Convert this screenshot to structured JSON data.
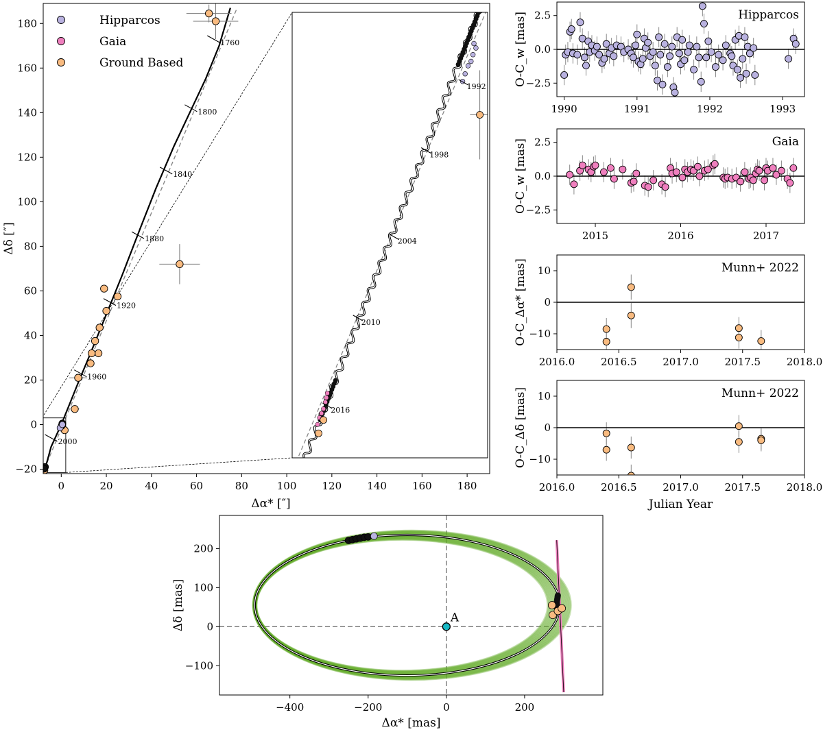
{
  "colors": {
    "hipparcos": "#b9b2e0",
    "gaia": "#ef7fbe",
    "ground": "#f9bb80",
    "orbit_ensemble": "#5fa821",
    "primary": "#17b8c4"
  },
  "chart_data": [
    {
      "id": "main",
      "type": "scatter",
      "xlabel": "Δα* [″]",
      "ylabel": "Δδ [″]",
      "xlim": [
        -8,
        190
      ],
      "ylim": [
        -22,
        189
      ],
      "xticks": [
        0,
        20,
        40,
        60,
        80,
        100,
        120,
        140,
        160,
        180
      ],
      "yticks": [
        -20,
        0,
        20,
        40,
        60,
        80,
        100,
        120,
        140,
        160,
        180
      ],
      "legend": {
        "position": "top-left",
        "entries": [
          {
            "key": "hipparcos",
            "label": "Hipparcos"
          },
          {
            "key": "gaia",
            "label": "Gaia"
          },
          {
            "key": "ground",
            "label": "Ground Based"
          }
        ]
      },
      "track": [
        [
          -7.2,
          -20
        ],
        [
          -4.5,
          -10
        ],
        [
          0,
          0
        ],
        [
          4,
          10
        ],
        [
          8,
          20
        ],
        [
          13,
          32
        ],
        [
          19,
          47
        ],
        [
          27,
          67
        ],
        [
          35,
          88
        ],
        [
          42,
          106
        ],
        [
          50,
          125
        ],
        [
          57,
          140
        ],
        [
          64,
          155
        ],
        [
          70,
          170
        ],
        [
          75,
          187
        ]
      ],
      "dashed": [
        [
          -7.5,
          -20
        ],
        [
          78,
          187
        ]
      ],
      "epochs": [
        {
          "label": "2000",
          "x": -4.5,
          "y": -6
        },
        {
          "label": "1960",
          "x": 8.5,
          "y": 23
        },
        {
          "label": "1920",
          "x": 21.5,
          "y": 55
        },
        {
          "label": "1880",
          "x": 34.0,
          "y": 85
        },
        {
          "label": "1840",
          "x": 46.5,
          "y": 114
        },
        {
          "label": "1800",
          "x": 57.5,
          "y": 142
        },
        {
          "label": "1760",
          "x": 67.5,
          "y": 173
        }
      ],
      "ground_points": [
        {
          "x": 65.5,
          "y": 184.5,
          "ex": 10,
          "ey": 4
        },
        {
          "x": 68.5,
          "y": 181,
          "ex": 10,
          "ey": 8
        },
        {
          "x": 52.5,
          "y": 72,
          "ex": 9,
          "ey": 9
        },
        {
          "x": 25,
          "y": 57.5,
          "ex": 1,
          "ey": 1.5
        },
        {
          "x": 19,
          "y": 61,
          "ex": 1,
          "ey": 1.5
        },
        {
          "x": 20,
          "y": 51,
          "ex": 1,
          "ey": 1.5
        },
        {
          "x": 17,
          "y": 43.5,
          "ex": 1,
          "ey": 1.5
        },
        {
          "x": 15,
          "y": 37.5,
          "ex": 1,
          "ey": 1.5
        },
        {
          "x": 16.5,
          "y": 32,
          "ex": 1.5,
          "ey": 1.5
        },
        {
          "x": 13.5,
          "y": 32,
          "ex": 1.5,
          "ey": 1.5
        },
        {
          "x": 13,
          "y": 27.5,
          "ex": 1.5,
          "ey": 1.5
        },
        {
          "x": 7.5,
          "y": 21,
          "ex": 4,
          "ey": 1.5
        },
        {
          "x": 6,
          "y": 7,
          "ex": 2,
          "ey": 1.5
        },
        {
          "x": 1.5,
          "y": -2.5,
          "ex": 1,
          "ey": 1
        },
        {
          "x": -7.5,
          "y": -20.5,
          "ex": 0.5,
          "ey": 0.5
        }
      ],
      "hip_points": [
        {
          "x": -0.5,
          "y": -1.5
        },
        {
          "x": 0.5,
          "y": 0
        }
      ],
      "black_points": [
        {
          "x": 0.5,
          "y": 0.5
        },
        {
          "x": 0.2,
          "y": -0.5
        },
        {
          "x": -7.2,
          "y": -19
        },
        {
          "x": -7.6,
          "y": -19.8
        }
      ]
    },
    {
      "id": "inset",
      "type": "line",
      "epochs": [
        {
          "label": "1992",
          "u": 0.876,
          "v": 0.843
        },
        {
          "label": "1998",
          "u": 0.685,
          "v": 0.69
        },
        {
          "label": "2004",
          "u": 0.522,
          "v": 0.496
        },
        {
          "label": "2010",
          "u": 0.336,
          "v": 0.314
        },
        {
          "label": "2016",
          "u": 0.18,
          "v": 0.117
        }
      ],
      "ground_points": [
        {
          "u": 0.96,
          "v": 0.77,
          "eu": 0.05,
          "ev": 0.1
        },
        {
          "u": 0.135,
          "v": 0.055,
          "eu": 0,
          "ev": 0
        },
        {
          "u": 0.16,
          "v": 0.085,
          "eu": 0,
          "ev": 0
        }
      ]
    },
    {
      "id": "hip_residuals",
      "type": "scatter",
      "annotation": "Hipparcos",
      "ylabel": "O-C_w [mas]",
      "xlim": [
        1989.9,
        1993.3
      ],
      "ylim": [
        -3.5,
        3.5
      ],
      "xticks": [
        1990,
        1991,
        1992,
        1993
      ],
      "yticks": [
        -2.5,
        0.0,
        2.5
      ],
      "points": [
        [
          1990.0,
          -1.9
        ],
        [
          1990.02,
          -0.4
        ],
        [
          1990.05,
          -0.2
        ],
        [
          1990.08,
          1.3
        ],
        [
          1990.1,
          1.5
        ],
        [
          1990.12,
          -0.3
        ],
        [
          1990.18,
          -0.4
        ],
        [
          1990.22,
          2.0
        ],
        [
          1990.25,
          0.8
        ],
        [
          1990.28,
          -0.6
        ],
        [
          1990.3,
          -1.2
        ],
        [
          1990.33,
          0.6
        ],
        [
          1990.35,
          -0.2
        ],
        [
          1990.38,
          0.3
        ],
        [
          1990.42,
          -0.1
        ],
        [
          1990.45,
          0.2
        ],
        [
          1990.48,
          -0.4
        ],
        [
          1990.52,
          -1.0
        ],
        [
          1990.55,
          -0.7
        ],
        [
          1990.58,
          0.4
        ],
        [
          1990.62,
          -0.3
        ],
        [
          1990.65,
          0.1
        ],
        [
          1990.68,
          -0.5
        ],
        [
          1990.72,
          0.3
        ],
        [
          1990.78,
          0.2
        ],
        [
          1990.82,
          -0.2
        ],
        [
          1990.88,
          0.0
        ],
        [
          1990.92,
          -0.3
        ],
        [
          1990.95,
          -0.6
        ],
        [
          1990.98,
          0.3
        ],
        [
          1991.0,
          1.1
        ],
        [
          1991.02,
          -0.9
        ],
        [
          1991.05,
          -1.1
        ],
        [
          1991.08,
          -0.7
        ],
        [
          1991.1,
          0.8
        ],
        [
          1991.12,
          0.1
        ],
        [
          1991.15,
          0.5
        ],
        [
          1991.18,
          -0.5
        ],
        [
          1991.22,
          -0.2
        ],
        [
          1991.25,
          -1.2
        ],
        [
          1991.28,
          -2.3
        ],
        [
          1991.3,
          0.9
        ],
        [
          1991.32,
          -0.4
        ],
        [
          1991.35,
          -2.6
        ],
        [
          1991.38,
          0.4
        ],
        [
          1991.42,
          -1.3
        ],
        [
          1991.45,
          -0.5
        ],
        [
          1991.48,
          0.2
        ],
        [
          1991.5,
          -2.8
        ],
        [
          1991.52,
          -3.2
        ],
        [
          1991.55,
          0.9
        ],
        [
          1991.58,
          -0.3
        ],
        [
          1991.6,
          -1.1
        ],
        [
          1991.62,
          0.7
        ],
        [
          1991.65,
          -0.8
        ],
        [
          1991.7,
          -0.2
        ],
        [
          1991.72,
          0.3
        ],
        [
          1991.78,
          -1.5
        ],
        [
          1991.82,
          0.2
        ],
        [
          1991.85,
          -0.6
        ],
        [
          1991.88,
          -2.4
        ],
        [
          1991.9,
          3.2
        ],
        [
          1991.92,
          1.9
        ],
        [
          1991.95,
          -0.6
        ],
        [
          1991.98,
          0.6
        ],
        [
          1992.02,
          -0.2
        ],
        [
          1992.08,
          -1.3
        ],
        [
          1992.12,
          -0.4
        ],
        [
          1992.18,
          -0.8
        ],
        [
          1992.22,
          0.3
        ],
        [
          1992.28,
          -0.3
        ],
        [
          1992.3,
          -0.5
        ],
        [
          1992.32,
          -1.2
        ],
        [
          1992.35,
          0.7
        ],
        [
          1992.38,
          -1.5
        ],
        [
          1992.4,
          1.0
        ],
        [
          1992.42,
          -2.1
        ],
        [
          1992.45,
          -0.7
        ],
        [
          1992.48,
          0.9
        ],
        [
          1992.5,
          -1.8
        ],
        [
          1992.52,
          0.2
        ],
        [
          1992.55,
          -0.3
        ],
        [
          1992.6,
          0.1
        ],
        [
          1992.62,
          -1.9
        ],
        [
          1993.08,
          -0.7
        ],
        [
          1993.15,
          0.8
        ],
        [
          1993.18,
          0.4
        ]
      ]
    },
    {
      "id": "gaia_residuals",
      "type": "scatter",
      "annotation": "Gaia",
      "ylabel": "O-C_w [mas]",
      "xlim": [
        2014.55,
        2017.45
      ],
      "ylim": [
        -3.5,
        3.5
      ],
      "xticks": [
        2015,
        2016,
        2017
      ],
      "yticks": [
        -2.5,
        0.0,
        2.5
      ],
      "points": [
        [
          2014.7,
          0.1
        ],
        [
          2014.75,
          -0.6
        ],
        [
          2014.82,
          0.4
        ],
        [
          2014.85,
          0.8
        ],
        [
          2014.92,
          0.5
        ],
        [
          2014.95,
          0.3
        ],
        [
          2014.98,
          0.7
        ],
        [
          2015.0,
          0.8
        ],
        [
          2015.1,
          0.3
        ],
        [
          2015.18,
          0.6
        ],
        [
          2015.22,
          -0.2
        ],
        [
          2015.32,
          0.5
        ],
        [
          2015.42,
          -0.5
        ],
        [
          2015.45,
          -0.4
        ],
        [
          2015.48,
          0.2
        ],
        [
          2015.58,
          -0.7
        ],
        [
          2015.62,
          -0.8
        ],
        [
          2015.68,
          -0.3
        ],
        [
          2015.78,
          -0.6
        ],
        [
          2015.82,
          -0.8
        ],
        [
          2015.88,
          0.6
        ],
        [
          2015.9,
          0.2
        ],
        [
          2015.95,
          0.3
        ],
        [
          2016.02,
          -0.1
        ],
        [
          2016.05,
          0.5
        ],
        [
          2016.08,
          0.3
        ],
        [
          2016.12,
          0.5
        ],
        [
          2016.15,
          0.4
        ],
        [
          2016.2,
          0.7
        ],
        [
          2016.22,
          0.0
        ],
        [
          2016.28,
          0.4
        ],
        [
          2016.32,
          0.5
        ],
        [
          2016.38,
          0.8
        ],
        [
          2016.4,
          0.9
        ],
        [
          2016.5,
          -0.1
        ],
        [
          2016.52,
          -0.2
        ],
        [
          2016.55,
          -0.1
        ],
        [
          2016.6,
          -0.2
        ],
        [
          2016.65,
          -0.1
        ],
        [
          2016.7,
          -0.4
        ],
        [
          2016.75,
          0.3
        ],
        [
          2016.8,
          -0.2
        ],
        [
          2016.82,
          -0.1
        ],
        [
          2016.85,
          -0.3
        ],
        [
          2016.88,
          0.2
        ],
        [
          2016.9,
          0.5
        ],
        [
          2016.92,
          0.4
        ],
        [
          2016.98,
          -0.3
        ],
        [
          2017.0,
          0.6
        ],
        [
          2017.02,
          0.4
        ],
        [
          2017.08,
          0.6
        ],
        [
          2017.12,
          0.1
        ],
        [
          2017.18,
          0.4
        ],
        [
          2017.25,
          -0.2
        ],
        [
          2017.28,
          -0.5
        ],
        [
          2017.32,
          0.6
        ]
      ]
    },
    {
      "id": "munn_ra",
      "type": "scatter",
      "annotation": "Munn+ 2022",
      "ylabel": "O-C_Δα* [mas]",
      "xlim": [
        2016.0,
        2018.0
      ],
      "ylim": [
        -15,
        15
      ],
      "xticks": [
        2016.0,
        2016.5,
        2017.0,
        2017.5,
        2018.0
      ],
      "yticks": [
        -10,
        0,
        10
      ],
      "points": [
        [
          2016.4,
          -8.5,
          3.5
        ],
        [
          2016.4,
          -12.5,
          3.5
        ],
        [
          2016.6,
          4.8,
          4
        ],
        [
          2016.6,
          -4.2,
          4
        ],
        [
          2017.47,
          -8.2,
          3.5
        ],
        [
          2017.47,
          -11.2,
          3.5
        ],
        [
          2017.65,
          -12.3,
          3.5
        ]
      ]
    },
    {
      "id": "munn_dec",
      "type": "scatter",
      "annotation": "Munn+ 2022",
      "ylabel": "O-C_Δδ [mas]",
      "xlabel": "Julian Year",
      "xlim": [
        2016.0,
        2018.0
      ],
      "ylim": [
        -15,
        15
      ],
      "xticks": [
        2016.0,
        2016.5,
        2017.0,
        2017.5,
        2018.0
      ],
      "yticks": [
        -10,
        0,
        10
      ],
      "points": [
        [
          2016.4,
          -1.8,
          3.5
        ],
        [
          2016.4,
          -7.0,
          3.5
        ],
        [
          2016.6,
          -6.3,
          3.5
        ],
        [
          2016.6,
          -15.2,
          3.5
        ],
        [
          2017.47,
          0.5,
          3.5
        ],
        [
          2017.47,
          -4.5,
          3.5
        ],
        [
          2017.65,
          -3.5,
          3.5
        ],
        [
          2017.65,
          -4.0,
          3.5
        ]
      ]
    },
    {
      "id": "orbit",
      "type": "line",
      "xlabel": "Δα* [mas]",
      "ylabel": "Δδ [mas]",
      "xlim": [
        -580,
        400
      ],
      "ylim": [
        -175,
        285
      ],
      "xticks": [
        -400,
        -200,
        0,
        200
      ],
      "yticks": [
        -100,
        0,
        100,
        200
      ],
      "primary": {
        "x": 0,
        "y": 0,
        "label": "A"
      },
      "orbit": {
        "cx": -100,
        "cy": 55,
        "a": 390,
        "b": 180
      },
      "hip_points": [
        [
          -250,
          221
        ],
        [
          -240,
          223
        ],
        [
          -230,
          225
        ],
        [
          -220,
          227
        ],
        [
          -210,
          229
        ],
        [
          -200,
          230
        ],
        [
          -185,
          232
        ]
      ],
      "ground_points": [
        [
          270,
          55
        ],
        [
          272,
          30
        ],
        [
          285,
          40
        ],
        [
          295,
          47
        ]
      ],
      "gaia_line": [
        [
          282,
          125
        ],
        [
          300,
          -168
        ]
      ]
    }
  ]
}
